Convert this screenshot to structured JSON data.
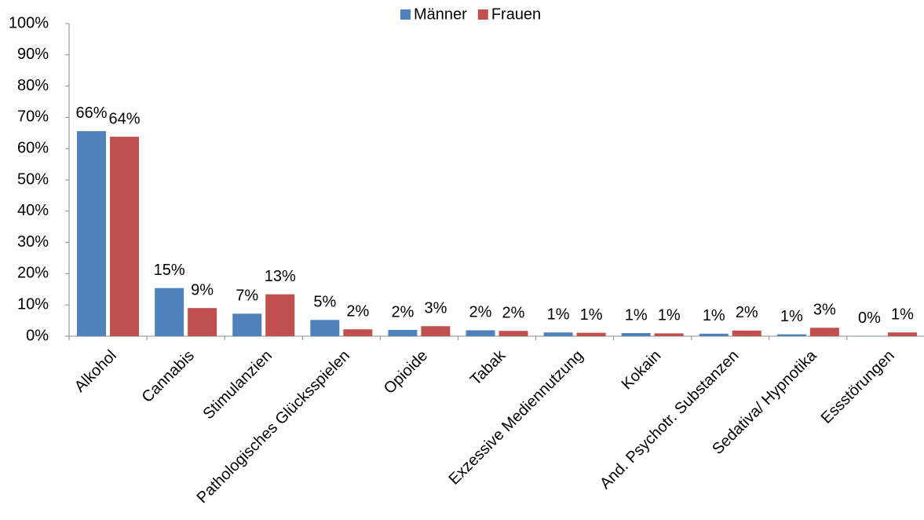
{
  "chart_data": {
    "type": "bar",
    "categories": [
      "Alkohol",
      "Cannabis",
      "Stimulanzien",
      "Pathologisches Glücksspielen",
      "Opioide",
      "Tabak",
      "Exzessive Mediennutzung",
      "Kokain",
      "And. Psychotr. Substanzen",
      "Sedativa/ Hypnotika",
      "Essstörungen"
    ],
    "series": [
      {
        "name": "Männer",
        "color": "#4f81bd",
        "values": [
          65.6,
          15.4,
          7.2,
          5.2,
          2.0,
          1.9,
          1.2,
          1.0,
          0.8,
          0.6,
          0.1
        ],
        "value_labels": [
          "66%",
          "15%",
          "7%",
          "5%",
          "2%",
          "2%",
          "1%",
          "1%",
          "1%",
          "1%",
          "0%"
        ]
      },
      {
        "name": "Frauen",
        "color": "#c0504d",
        "values": [
          63.8,
          9.0,
          13.4,
          2.2,
          3.2,
          1.7,
          1.1,
          0.9,
          1.8,
          2.7,
          1.2
        ],
        "value_labels": [
          "64%",
          "9%",
          "13%",
          "2%",
          "3%",
          "2%",
          "1%",
          "1%",
          "2%",
          "3%",
          "1%"
        ]
      }
    ],
    "ylim": [
      0,
      100
    ],
    "yticks": [
      {
        "value": 0,
        "label": "0%"
      },
      {
        "value": 10,
        "label": "10%"
      },
      {
        "value": 20,
        "label": "20%"
      },
      {
        "value": 30,
        "label": "30%"
      },
      {
        "value": 40,
        "label": "40%"
      },
      {
        "value": 50,
        "label": "50%"
      },
      {
        "value": 60,
        "label": "60%"
      },
      {
        "value": 70,
        "label": "70%"
      },
      {
        "value": 80,
        "label": "80%"
      },
      {
        "value": 90,
        "label": "90%"
      },
      {
        "value": 100,
        "label": "100%"
      }
    ],
    "legend": "top",
    "grid": false
  }
}
